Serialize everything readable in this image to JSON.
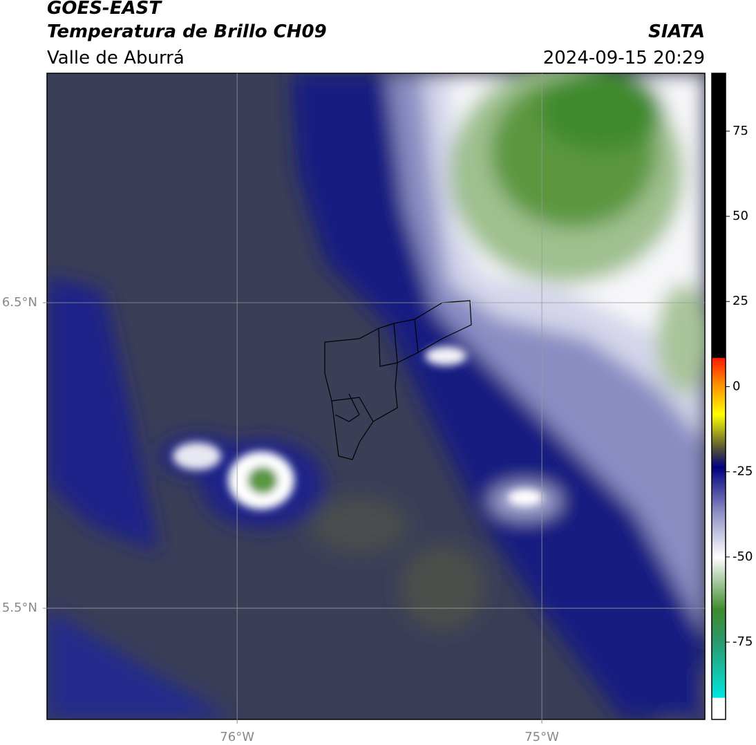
{
  "header": {
    "title": "GOES-EAST",
    "subtitle": "Temperatura de Brillo CH09",
    "region": "Valle de Aburrá",
    "source": "SIATA",
    "datetime": "2024-09-15 20:29"
  },
  "map": {
    "lonlim": [
      -76.624,
      -74.465
    ],
    "latlim": [
      5.136,
      7.251
    ],
    "lonticks": [
      {
        "value": -76,
        "label": "76°W"
      },
      {
        "value": -75,
        "label": "75°W"
      }
    ],
    "latticks": [
      {
        "value": 6.5,
        "label": "6.5°N"
      },
      {
        "value": 5.5,
        "label": "5.5°N"
      }
    ],
    "grid": true
  },
  "colorbar": {
    "lim": [
      -97.7,
      92
    ],
    "ticks": [
      75,
      50,
      25,
      0,
      -25,
      -50,
      -75
    ]
  }
}
